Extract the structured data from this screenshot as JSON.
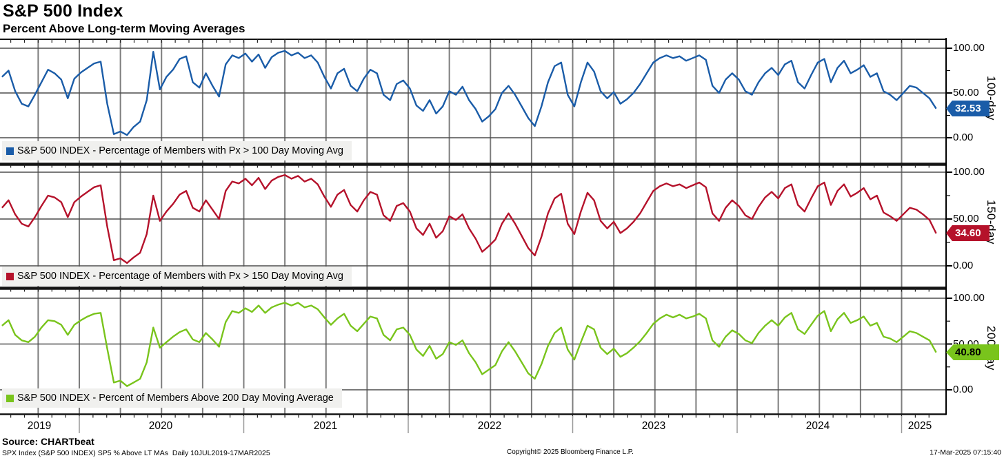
{
  "header": {
    "title": "S&P 500 Index",
    "subtitle": "Percent Above Long-term Moving Averages"
  },
  "axis": {
    "y_tick_labels": [
      "100.00",
      "50.00",
      "0.00"
    ],
    "x_tick_labels": [
      "2019",
      "2020",
      "2021",
      "2022",
      "2023",
      "2024",
      "2025"
    ]
  },
  "panels": [
    {
      "legend": "S&P 500 INDEX - Percentage of Members with Px > 100 Day Moving Avg",
      "axis_label": "100-day",
      "last_value": "32.53",
      "color": "#1a5ca8",
      "badge_text_color": "#ffffff"
    },
    {
      "legend": "S&P 500 INDEX - Percentage of Members with Px > 150 Day Moving Avg",
      "axis_label": "150-day",
      "last_value": "34.60",
      "color": "#b5122b",
      "badge_text_color": "#ffffff"
    },
    {
      "legend": "S&P 500 INDEX - Percent of Members Above 200 Day Moving Average",
      "axis_label": "200-day",
      "last_value": "40.80",
      "color": "#79c41c",
      "badge_text_color": "#000000"
    }
  ],
  "footer": {
    "source": "Source: CHARTbeat",
    "meta": "SPX Index (S&P 500 INDEX) SP5 % Above LT MAs  Daily 10JUL2019-17MAR2025",
    "copyright": "Copyright© 2025 Bloomberg Finance L.P.",
    "timestamp": "17-Mar-2025 07:15:40"
  },
  "chart_data": {
    "type": "line",
    "title": "S&P 500 Index - Percent Above Long-term Moving Averages",
    "x_axis": "Date (fractional year), daily series 10JUL2019-17MAR2025",
    "ylim": [
      0,
      100
    ],
    "x_domain": [
      2019.53,
      2025.21
    ],
    "x_gridline_interval_years": 0.25,
    "y_gridlines": [
      0,
      50,
      100
    ],
    "legend_position": "bottom-left of each panel",
    "x_start": 2019.53,
    "x_step": 0.04,
    "series": [
      {
        "name": "Pct of members above 100-day MA",
        "last_value": 32.53,
        "values": [
          68,
          75,
          52,
          38,
          35,
          48,
          62,
          76,
          72,
          65,
          44,
          66,
          73,
          78,
          83,
          85,
          38,
          4,
          7,
          3,
          12,
          18,
          42,
          96,
          54,
          68,
          76,
          88,
          91,
          62,
          56,
          72,
          58,
          46,
          82,
          92,
          89,
          94,
          85,
          93,
          78,
          90,
          95,
          97,
          92,
          95,
          89,
          92,
          84,
          68,
          55,
          72,
          77,
          58,
          52,
          66,
          76,
          72,
          48,
          42,
          60,
          64,
          55,
          36,
          30,
          42,
          27,
          35,
          52,
          48,
          57,
          42,
          32,
          18,
          24,
          32,
          50,
          58,
          48,
          35,
          22,
          13,
          35,
          62,
          80,
          84,
          48,
          35,
          62,
          84,
          74,
          52,
          44,
          51,
          38,
          43,
          50,
          60,
          72,
          84,
          89,
          92,
          89,
          91,
          86,
          89,
          92,
          87,
          58,
          50,
          65,
          72,
          65,
          52,
          48,
          62,
          72,
          78,
          70,
          82,
          86,
          62,
          55,
          70,
          84,
          88,
          62,
          78,
          86,
          72,
          76,
          81,
          68,
          72,
          52,
          48,
          42,
          50,
          58,
          56,
          50,
          44,
          32.53
        ]
      },
      {
        "name": "Pct of members above 150-day MA",
        "last_value": 34.6,
        "values": [
          62,
          70,
          55,
          45,
          42,
          52,
          64,
          75,
          73,
          68,
          52,
          68,
          74,
          79,
          84,
          86,
          42,
          6,
          8,
          3,
          9,
          14,
          34,
          75,
          48,
          58,
          66,
          76,
          80,
          62,
          58,
          70,
          60,
          50,
          80,
          90,
          88,
          93,
          86,
          94,
          82,
          91,
          95,
          97,
          93,
          96,
          90,
          93,
          87,
          74,
          63,
          76,
          81,
          65,
          58,
          70,
          79,
          76,
          54,
          48,
          64,
          67,
          58,
          40,
          33,
          45,
          30,
          37,
          53,
          49,
          55,
          40,
          29,
          15,
          21,
          28,
          45,
          56,
          45,
          32,
          19,
          11,
          31,
          56,
          72,
          77,
          45,
          34,
          58,
          78,
          70,
          48,
          40,
          47,
          35,
          40,
          47,
          56,
          68,
          80,
          85,
          88,
          85,
          87,
          83,
          86,
          89,
          84,
          56,
          48,
          62,
          70,
          64,
          54,
          50,
          63,
          73,
          79,
          72,
          83,
          87,
          65,
          58,
          72,
          85,
          89,
          65,
          80,
          87,
          74,
          78,
          83,
          71,
          75,
          57,
          53,
          48,
          55,
          62,
          60,
          55,
          49,
          34.6
        ]
      },
      {
        "name": "Pct of members above 200-day MA",
        "last_value": 40.8,
        "values": [
          70,
          76,
          60,
          54,
          52,
          58,
          68,
          76,
          75,
          71,
          60,
          71,
          76,
          80,
          83,
          84,
          45,
          8,
          10,
          4,
          8,
          12,
          30,
          68,
          46,
          52,
          58,
          63,
          66,
          55,
          52,
          62,
          55,
          47,
          74,
          86,
          84,
          89,
          85,
          92,
          84,
          90,
          93,
          95,
          92,
          95,
          90,
          92,
          88,
          79,
          71,
          78,
          83,
          70,
          64,
          72,
          80,
          78,
          60,
          54,
          66,
          68,
          60,
          44,
          37,
          48,
          34,
          39,
          52,
          49,
          54,
          40,
          30,
          17,
          22,
          27,
          42,
          52,
          42,
          30,
          18,
          12,
          28,
          48,
          62,
          68,
          44,
          33,
          52,
          70,
          66,
          46,
          39,
          45,
          36,
          40,
          46,
          53,
          62,
          72,
          78,
          82,
          79,
          82,
          78,
          80,
          83,
          78,
          54,
          47,
          58,
          65,
          61,
          54,
          51,
          62,
          70,
          76,
          70,
          79,
          84,
          66,
          61,
          71,
          81,
          86,
          64,
          77,
          84,
          73,
          76,
          80,
          70,
          73,
          58,
          56,
          52,
          58,
          64,
          62,
          58,
          54,
          40.8
        ]
      }
    ]
  }
}
